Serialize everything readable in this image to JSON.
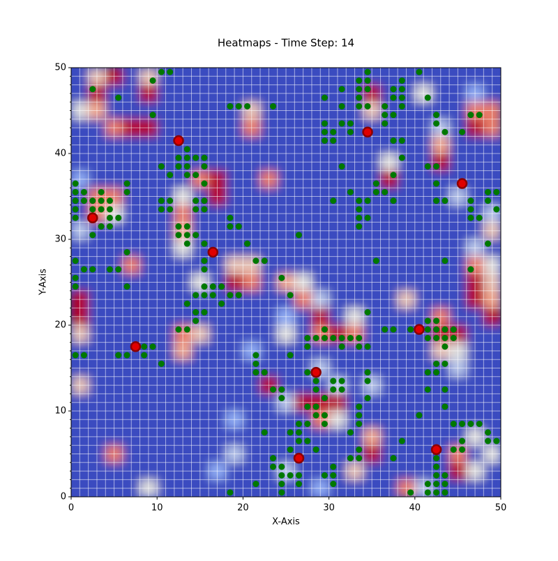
{
  "chart_data": {
    "type": "heatmap",
    "title": "Heatmaps - Time Step: 14",
    "x_label": "X-Axis",
    "y_label": "Y-Axis",
    "xlim": [
      0,
      50
    ],
    "ylim": [
      0,
      50
    ],
    "xticks": [
      0,
      10,
      20,
      30,
      40,
      50
    ],
    "yticks": [
      0,
      10,
      20,
      30,
      40,
      50
    ],
    "minor_ticks": [
      0,
      1,
      2,
      3,
      4,
      5,
      6,
      7,
      8,
      9,
      10,
      11,
      12,
      13,
      14,
      15,
      16,
      17,
      18,
      19,
      20,
      21,
      22,
      23,
      24,
      25,
      26,
      27,
      28,
      29,
      30,
      31,
      32,
      33,
      34,
      35,
      36,
      37,
      38,
      39,
      40,
      41,
      42,
      43,
      44,
      45,
      46,
      47,
      48,
      49,
      50
    ],
    "grid": true,
    "colormap": "coolwarm",
    "heatmap": {
      "z": [
        [
          0,
          0.6,
          1,
          0,
          0.6,
          0,
          0,
          0,
          0,
          0,
          0,
          0,
          0,
          0,
          0,
          0,
          0,
          0,
          0,
          0,
          0,
          0,
          0,
          0,
          0
        ],
        [
          0,
          1,
          0,
          0,
          1,
          0,
          0,
          0,
          0,
          0,
          0,
          0,
          0,
          0,
          0,
          0,
          0,
          1,
          0,
          0,
          0.5,
          0,
          0,
          0.3,
          0
        ],
        [
          0.5,
          0.7,
          0,
          0,
          0,
          0,
          0,
          0,
          0,
          0,
          0.6,
          0,
          0,
          0,
          0,
          0,
          0,
          0.6,
          0,
          0,
          0,
          0,
          0,
          0.8,
          0.8
        ],
        [
          0,
          0,
          0.8,
          1,
          1,
          0,
          0,
          0,
          0,
          0,
          0.8,
          0,
          0,
          0,
          0,
          0,
          0,
          0,
          0,
          0,
          0,
          0.4,
          0,
          1,
          0.8
        ],
        [
          0,
          0,
          0,
          0,
          0,
          0,
          0,
          0,
          0,
          0,
          0,
          0,
          0,
          0,
          0,
          0,
          0,
          0,
          0,
          0,
          0,
          0.7,
          0,
          0,
          0
        ],
        [
          0,
          0,
          0,
          0,
          0,
          0,
          0,
          0,
          0,
          0,
          0,
          0,
          0,
          0,
          0,
          0,
          0,
          0,
          0.5,
          0,
          0,
          1,
          0,
          0,
          0
        ],
        [
          0.3,
          0,
          0,
          0,
          0,
          0,
          0,
          0.8,
          1,
          0,
          0,
          0.8,
          0,
          0,
          0,
          0,
          0,
          0,
          1,
          0,
          0,
          0,
          0,
          0,
          0
        ],
        [
          0,
          0.8,
          0.8,
          0,
          0,
          0,
          0.5,
          0,
          1,
          0,
          0,
          0,
          0,
          0,
          0,
          0,
          0,
          0,
          0,
          0,
          0,
          0,
          0.4,
          0,
          0
        ],
        [
          0,
          0.8,
          0.5,
          0,
          0,
          0,
          0.8,
          0,
          0,
          0,
          0,
          0,
          0,
          0,
          0,
          0,
          0,
          0,
          0,
          0,
          0,
          0,
          0,
          0,
          0.4
        ],
        [
          0.4,
          0,
          0,
          0,
          0,
          0,
          0.7,
          0,
          0,
          0,
          0,
          0,
          0,
          0,
          0,
          0,
          0,
          0,
          0,
          0,
          0,
          0,
          0,
          0,
          0.6
        ],
        [
          0,
          0,
          0,
          0,
          0,
          0,
          0.5,
          0,
          0,
          0,
          0,
          0,
          0,
          0,
          0,
          0,
          0,
          0,
          0,
          0,
          0,
          0,
          0,
          0.4,
          0
        ],
        [
          0,
          0,
          0,
          0.8,
          0,
          0,
          0,
          0,
          0,
          0.6,
          0.6,
          0,
          0,
          0,
          0,
          0,
          0,
          0,
          0,
          0,
          0,
          0,
          0,
          0.8,
          0.5
        ],
        [
          0,
          0,
          0,
          0,
          0,
          0,
          0,
          0.5,
          0,
          1,
          0.8,
          0,
          0.7,
          0.5,
          0,
          0,
          0,
          0,
          0,
          0,
          0,
          0,
          0,
          1,
          0.6
        ],
        [
          1,
          0,
          0,
          0,
          0,
          0,
          0,
          0,
          0,
          0,
          0,
          0,
          0,
          0.8,
          0.4,
          0,
          0,
          0,
          0,
          0.6,
          0,
          0,
          0,
          1,
          0.7
        ],
        [
          1,
          0,
          0,
          0,
          0,
          0,
          0,
          0,
          0,
          0,
          0,
          0,
          0.3,
          0,
          1,
          0,
          0.5,
          0,
          0,
          0,
          0,
          0.8,
          0,
          0,
          1
        ],
        [
          0.6,
          0,
          0,
          0,
          0,
          0,
          0.8,
          0.6,
          0,
          0,
          0,
          0,
          0.5,
          0,
          0.8,
          1,
          0.8,
          0,
          0,
          0,
          0,
          1,
          1,
          0,
          0
        ],
        [
          0,
          0,
          0,
          0,
          0,
          0,
          0.7,
          0,
          0,
          0,
          0.3,
          0,
          0,
          0,
          0,
          0,
          0,
          0,
          0,
          0,
          0,
          0.6,
          0.5,
          0,
          0
        ],
        [
          0,
          0,
          0,
          0,
          0,
          0,
          0,
          0,
          0,
          0,
          0,
          0,
          0,
          0,
          0.4,
          0,
          0,
          0,
          0,
          0,
          0,
          0,
          0.4,
          0,
          0
        ],
        [
          0.6,
          0,
          0,
          0,
          0,
          0,
          0,
          0,
          0,
          0,
          0,
          1,
          0,
          0,
          0,
          0.4,
          0,
          0.4,
          0,
          0,
          0,
          0,
          0,
          0,
          0
        ],
        [
          0,
          0,
          0,
          0,
          0,
          0,
          0,
          0,
          0,
          0,
          0,
          0,
          0.4,
          1,
          1,
          1,
          0,
          0,
          0,
          0,
          0,
          0,
          0,
          0,
          0
        ],
        [
          0,
          0,
          0,
          0,
          0,
          0,
          0,
          0,
          0,
          0.3,
          0,
          0,
          0,
          0,
          0.8,
          0.5,
          0,
          0,
          0,
          0,
          0,
          0,
          0,
          0,
          0
        ],
        [
          0,
          0,
          0,
          0,
          0,
          0,
          0,
          0,
          0,
          0,
          0,
          0,
          0,
          0,
          0,
          0,
          0,
          0.7,
          0,
          0,
          0,
          0,
          0,
          0.5,
          0
        ],
        [
          0,
          0,
          0.8,
          0,
          0,
          0,
          0,
          0,
          0,
          0.4,
          0,
          0,
          0,
          0,
          0,
          0,
          0,
          1,
          0,
          0,
          0,
          0,
          0.8,
          0,
          0.5
        ],
        [
          0,
          0,
          0,
          0,
          0,
          0,
          0,
          0,
          0.3,
          0,
          0,
          0,
          0.4,
          0,
          0,
          0,
          0.6,
          0,
          0,
          0,
          0,
          0,
          1,
          0.5,
          0
        ],
        [
          0,
          0,
          0,
          0,
          0.5,
          0,
          0,
          0,
          0,
          0,
          0,
          0,
          0,
          0,
          0.3,
          0,
          0,
          0,
          0,
          0.8,
          0.4,
          0,
          0,
          0,
          0
        ]
      ]
    },
    "points": {
      "color": "#007800",
      "x": [
        10.5,
        11.5,
        34.5,
        40.5,
        9.5,
        33.5,
        34.5,
        38.5,
        2.5,
        31.5,
        33.5,
        34.5,
        37.5,
        38.5,
        5.5,
        29.5,
        33.5,
        37.5,
        38.5,
        41.5,
        18.5,
        19.5,
        20.5,
        23.5,
        31.5,
        33.5,
        34.5,
        36.5,
        38.5,
        9.5,
        36.5,
        37.5,
        42.5,
        46.5,
        47.5,
        29.5,
        31.5,
        32.5,
        36.5,
        42.5,
        29.5,
        30.5,
        32.5,
        43.5,
        45.5,
        29.5,
        30.5,
        37.5,
        38.5,
        13.5,
        12.5,
        13.5,
        14.5,
        15.5,
        38.5,
        10.5,
        12.5,
        13.5,
        15.5,
        31.5,
        41.5,
        42.5,
        11.5,
        13.5,
        14.5,
        37.5,
        0.5,
        6.5,
        15.5,
        35.5,
        42.5,
        0.5,
        1.5,
        3.5,
        6.5,
        32.5,
        35.5,
        36.5,
        48.5,
        49.5,
        0.5,
        1.5,
        2.5,
        3.5,
        4.5,
        10.5,
        11.5,
        14.5,
        15.5,
        30.5,
        33.5,
        34.5,
        37.5,
        42.5,
        43.5,
        46.5,
        48.5,
        0.5,
        2.5,
        3.5,
        4.5,
        10.5,
        11.5,
        14.5,
        15.5,
        33.5,
        46.5,
        49.5,
        0.5,
        4.5,
        5.5,
        18.5,
        33.5,
        34.5,
        46.5,
        47.5,
        3.5,
        4.5,
        12.5,
        13.5,
        18.5,
        19.5,
        33.5,
        2.5,
        12.5,
        13.5,
        14.5,
        26.5,
        13.5,
        15.5,
        20.5,
        48.5,
        6.5,
        0.5,
        15.5,
        21.5,
        22.5,
        35.5,
        43.5,
        1.5,
        2.5,
        4.5,
        5.5,
        15.5,
        46.5,
        0.5,
        24.5,
        0.5,
        6.5,
        15.5,
        16.5,
        17.5,
        14.5,
        15.5,
        16.5,
        18.5,
        19.5,
        25.5,
        13.5,
        17.5,
        14.5,
        15.5,
        34.5,
        14.5,
        41.5,
        42.5,
        12.5,
        13.5,
        29.5,
        36.5,
        37.5,
        39.5,
        41.5,
        42.5,
        43.5,
        44.5,
        27.5,
        28.5,
        29.5,
        30.5,
        31.5,
        32.5,
        33.5,
        41.5,
        42.5,
        43.5,
        44.5,
        8.5,
        9.5,
        27.5,
        31.5,
        33.5,
        34.5,
        43.5,
        0.5,
        1.5,
        5.5,
        6.5,
        8.5,
        21.5,
        25.5,
        10.5,
        21.5,
        42.5,
        43.5,
        21.5,
        22.5,
        27.5,
        34.5,
        41.5,
        42.5,
        28.5,
        30.5,
        31.5,
        34.5,
        23.5,
        24.5,
        28.5,
        30.5,
        31.5,
        41.5,
        43.5,
        24.5,
        29.5,
        34.5,
        27.5,
        28.5,
        33.5,
        43.5,
        28.5,
        29.5,
        33.5,
        40.5,
        26.5,
        27.5,
        29.5,
        33.5,
        44.5,
        45.5,
        46.5,
        47.5,
        22.5,
        25.5,
        26.5,
        32.5,
        48.5,
        26.5,
        27.5,
        38.5,
        45.5,
        48.5,
        49.5,
        25.5,
        28.5,
        33.5,
        44.5,
        45.5,
        23.5,
        32.5,
        33.5,
        37.5,
        42.5,
        23.5,
        24.5,
        30.5,
        42.5,
        24.5,
        25.5,
        26.5,
        29.5,
        30.5,
        42.5,
        43.5,
        21.5,
        24.5,
        26.5,
        30.5,
        41.5,
        42.5,
        43.5,
        18.5,
        24.5,
        39.5,
        41.5,
        42.5,
        43.5
      ],
      "y": [
        49.5,
        49.5,
        49.5,
        49.5,
        48.5,
        48.5,
        48.5,
        48.5,
        47.5,
        47.5,
        47.5,
        47.5,
        47.5,
        47.5,
        46.5,
        46.5,
        46.5,
        46.5,
        46.5,
        46.5,
        45.5,
        45.5,
        45.5,
        45.5,
        45.5,
        45.5,
        45.5,
        45.5,
        45.5,
        44.5,
        44.5,
        44.5,
        44.5,
        44.5,
        44.5,
        43.5,
        43.5,
        43.5,
        43.5,
        43.5,
        42.5,
        42.5,
        42.5,
        42.5,
        42.5,
        41.5,
        41.5,
        41.5,
        41.5,
        40.5,
        39.5,
        39.5,
        39.5,
        39.5,
        39.5,
        38.5,
        38.5,
        38.5,
        38.5,
        38.5,
        38.5,
        38.5,
        37.5,
        37.5,
        37.5,
        37.5,
        36.5,
        36.5,
        36.5,
        36.5,
        36.5,
        35.5,
        35.5,
        35.5,
        35.5,
        35.5,
        35.5,
        35.5,
        35.5,
        35.5,
        34.5,
        34.5,
        34.5,
        34.5,
        34.5,
        34.5,
        34.5,
        34.5,
        34.5,
        34.5,
        34.5,
        34.5,
        34.5,
        34.5,
        34.5,
        34.5,
        34.5,
        33.5,
        33.5,
        33.5,
        33.5,
        33.5,
        33.5,
        33.5,
        33.5,
        33.5,
        33.5,
        33.5,
        32.5,
        32.5,
        32.5,
        32.5,
        32.5,
        32.5,
        32.5,
        32.5,
        31.5,
        31.5,
        31.5,
        31.5,
        31.5,
        31.5,
        31.5,
        30.5,
        30.5,
        30.5,
        30.5,
        30.5,
        29.5,
        29.5,
        29.5,
        29.5,
        28.5,
        27.5,
        27.5,
        27.5,
        27.5,
        27.5,
        27.5,
        26.5,
        26.5,
        26.5,
        26.5,
        26.5,
        26.5,
        25.5,
        25.5,
        24.5,
        24.5,
        24.5,
        24.5,
        24.5,
        23.5,
        23.5,
        23.5,
        23.5,
        23.5,
        23.5,
        22.5,
        22.5,
        21.5,
        21.5,
        21.5,
        20.5,
        20.5,
        20.5,
        19.5,
        19.5,
        19.5,
        19.5,
        19.5,
        19.5,
        19.5,
        19.5,
        19.5,
        19.5,
        18.5,
        18.5,
        18.5,
        18.5,
        18.5,
        18.5,
        18.5,
        18.5,
        18.5,
        18.5,
        18.5,
        17.5,
        17.5,
        17.5,
        17.5,
        17.5,
        17.5,
        17.5,
        16.5,
        16.5,
        16.5,
        16.5,
        16.5,
        16.5,
        16.5,
        15.5,
        15.5,
        15.5,
        15.5,
        14.5,
        14.5,
        14.5,
        14.5,
        14.5,
        14.5,
        13.5,
        13.5,
        13.5,
        13.5,
        12.5,
        12.5,
        12.5,
        12.5,
        12.5,
        12.5,
        12.5,
        11.5,
        11.5,
        11.5,
        10.5,
        10.5,
        10.5,
        10.5,
        9.5,
        9.5,
        9.5,
        9.5,
        8.5,
        8.5,
        8.5,
        8.5,
        8.5,
        8.5,
        8.5,
        8.5,
        7.5,
        7.5,
        7.5,
        7.5,
        7.5,
        6.5,
        6.5,
        6.5,
        6.5,
        6.5,
        6.5,
        5.5,
        5.5,
        5.5,
        5.5,
        5.5,
        4.5,
        4.5,
        4.5,
        4.5,
        4.5,
        3.5,
        3.5,
        3.5,
        3.5,
        2.5,
        2.5,
        2.5,
        2.5,
        2.5,
        2.5,
        2.5,
        1.5,
        1.5,
        1.5,
        1.5,
        1.5,
        1.5,
        1.5,
        0.5,
        0.5,
        0.5,
        0.5,
        0.5,
        0.5
      ]
    },
    "agents": {
      "color": "#e00000",
      "edge_color": "#8b0000",
      "x": [
        2.5,
        7.5,
        12.5,
        16.5,
        26.5,
        28.5,
        34.5,
        40.5,
        42.5,
        45.5
      ],
      "y": [
        32.5,
        17.5,
        41.5,
        28.5,
        4.5,
        14.5,
        42.5,
        19.5,
        5.5,
        36.5
      ]
    }
  }
}
